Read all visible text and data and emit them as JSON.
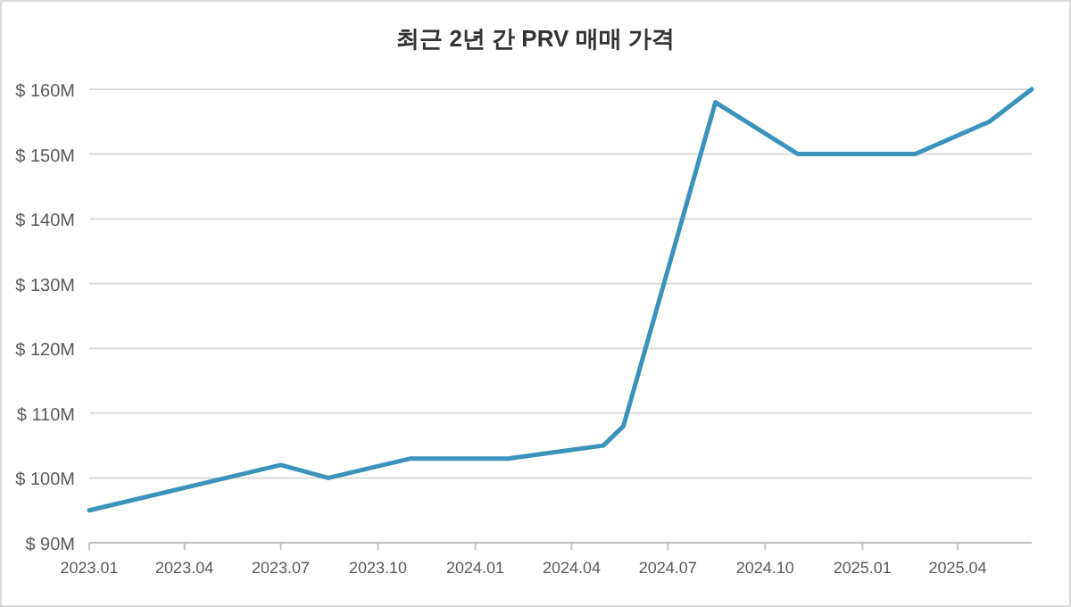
{
  "chart_data": {
    "type": "line",
    "title": "최근 2년 간 PRV 매매 가격",
    "x": [
      "2023-01-01",
      "2023-07-01",
      "2023-08-15",
      "2023-11-01",
      "2024-02-01",
      "2024-05-01",
      "2024-05-20",
      "2024-08-15",
      "2024-11-01",
      "2025-02-20",
      "2025-05-01",
      "2025-06-10"
    ],
    "series": [
      {
        "color": "#3a93bb",
        "values": [
          95,
          102,
          100,
          103,
          103,
          105,
          108,
          158,
          150,
          150,
          155,
          160
        ]
      }
    ],
    "xlim": [
      "2023-01-01",
      "2025-06-10"
    ],
    "xticks": [
      {
        "value": "2023-01-01",
        "label": "2023.01"
      },
      {
        "value": "2023-04-01",
        "label": "2023.04"
      },
      {
        "value": "2023-07-01",
        "label": "2023.07"
      },
      {
        "value": "2023-10-01",
        "label": "2023.10"
      },
      {
        "value": "2024-01-01",
        "label": "2024.01"
      },
      {
        "value": "2024-04-01",
        "label": "2024.04"
      },
      {
        "value": "2024-07-01",
        "label": "2024.07"
      },
      {
        "value": "2024-10-01",
        "label": "2024.10"
      },
      {
        "value": "2025-01-01",
        "label": "2025.01"
      },
      {
        "value": "2025-04-01",
        "label": "2025.04"
      }
    ],
    "ylim": [
      90,
      160
    ],
    "yticks": [
      {
        "value": 90,
        "label": "$ 90M"
      },
      {
        "value": 100,
        "label": "$ 100M"
      },
      {
        "value": 110,
        "label": "$ 110M"
      },
      {
        "value": 120,
        "label": "$ 120M"
      },
      {
        "value": 130,
        "label": "$ 130M"
      },
      {
        "value": 140,
        "label": "$ 140M"
      },
      {
        "value": 150,
        "label": "$ 150M"
      },
      {
        "value": 160,
        "label": "$ 160M"
      }
    ],
    "grid": "y",
    "marker": "none",
    "line_style": "solid"
  }
}
